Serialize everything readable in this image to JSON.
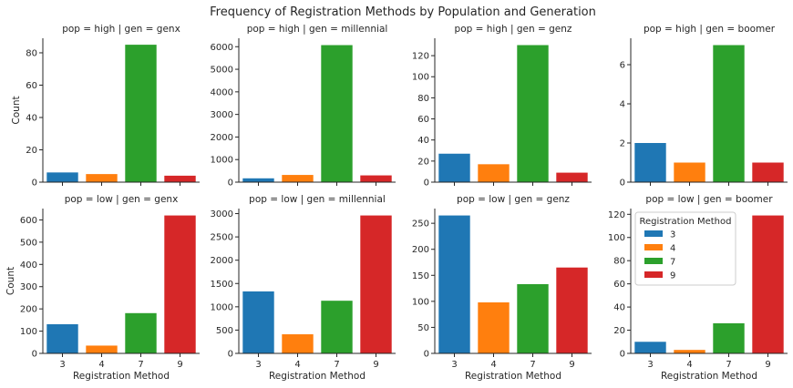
{
  "figure": {
    "title": "Frequency of Registration Methods by Population and Generation",
    "palette": {
      "3": "#1f77b4",
      "4": "#ff7f0e",
      "7": "#2ca02c",
      "9": "#d62728"
    }
  },
  "chart_data": [
    {
      "type": "bar",
      "title": "pop = high | gen = genx",
      "categories": [
        "3",
        "4",
        "7",
        "9"
      ],
      "values": [
        6,
        5,
        85,
        4
      ],
      "ylim": [
        0,
        89
      ],
      "yticks": [
        0,
        20,
        40,
        60,
        80
      ],
      "ylabel": "Count",
      "xlabel": ""
    },
    {
      "type": "bar",
      "title": "pop = high | gen = millennial",
      "categories": [
        "3",
        "4",
        "7",
        "9"
      ],
      "values": [
        170,
        320,
        6070,
        300
      ],
      "ylim": [
        0,
        6374
      ],
      "yticks": [
        0,
        1000,
        2000,
        3000,
        4000,
        5000,
        6000
      ],
      "ylabel": "",
      "xlabel": ""
    },
    {
      "type": "bar",
      "title": "pop = high | gen = genz",
      "categories": [
        "3",
        "4",
        "7",
        "9"
      ],
      "values": [
        27,
        17,
        130,
        9
      ],
      "ylim": [
        0,
        136.5
      ],
      "yticks": [
        0,
        20,
        40,
        60,
        80,
        100,
        120
      ],
      "ylabel": "",
      "xlabel": ""
    },
    {
      "type": "bar",
      "title": "pop = high | gen = boomer",
      "categories": [
        "3",
        "4",
        "7",
        "9"
      ],
      "values": [
        2,
        1,
        7,
        1
      ],
      "ylim": [
        0,
        7.35
      ],
      "yticks": [
        0,
        2,
        4,
        6
      ],
      "ylabel": "",
      "xlabel": ""
    },
    {
      "type": "bar",
      "title": "pop = low | gen = genx",
      "categories": [
        "3",
        "4",
        "7",
        "9"
      ],
      "values": [
        131,
        35,
        181,
        620
      ],
      "ylim": [
        0,
        651
      ],
      "yticks": [
        0,
        100,
        200,
        300,
        400,
        500,
        600
      ],
      "ylabel": "Count",
      "xlabel": "Registration Method"
    },
    {
      "type": "bar",
      "title": "pop = low | gen = millennial",
      "categories": [
        "3",
        "4",
        "7",
        "9"
      ],
      "values": [
        1330,
        410,
        1130,
        2960
      ],
      "ylim": [
        0,
        3108
      ],
      "yticks": [
        0,
        500,
        1000,
        1500,
        2000,
        2500,
        3000
      ],
      "ylabel": "",
      "xlabel": "Registration Method"
    },
    {
      "type": "bar",
      "title": "pop = low | gen = genz",
      "categories": [
        "3",
        "4",
        "7",
        "9"
      ],
      "values": [
        265,
        98,
        133,
        165
      ],
      "ylim": [
        0,
        278.25
      ],
      "yticks": [
        0,
        50,
        100,
        150,
        200,
        250
      ],
      "ylabel": "",
      "xlabel": "Registration Method"
    },
    {
      "type": "bar",
      "title": "pop = low | gen = boomer",
      "categories": [
        "3",
        "4",
        "7",
        "9"
      ],
      "values": [
        10,
        3,
        26,
        119
      ],
      "ylim": [
        0,
        124.95
      ],
      "yticks": [
        0,
        20,
        40,
        60,
        80,
        100,
        120
      ],
      "ylabel": "",
      "xlabel": "Registration Method",
      "legend": {
        "title": "Registration Method",
        "entries": [
          "3",
          "4",
          "7",
          "9"
        ],
        "placement": "top-left"
      }
    }
  ]
}
